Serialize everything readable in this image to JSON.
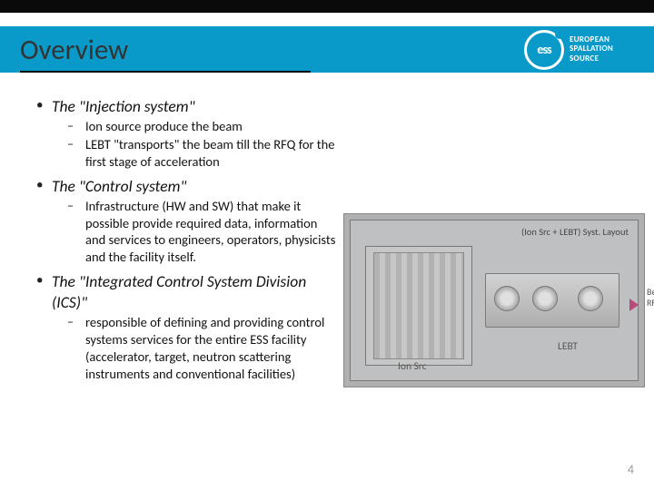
{
  "header": {
    "title": "Overview",
    "brand_lines": [
      "EUROPEAN",
      "SPALLATION",
      "SOURCE"
    ],
    "logo_text": "ess",
    "bar_color": "#0a9ac9",
    "top_stripe_color": "#0a0a0a"
  },
  "bullets": [
    {
      "level": 1,
      "italic": true,
      "text": "The \"Injection system\""
    },
    {
      "level": 2,
      "text": "Ion source produce the beam"
    },
    {
      "level": 2,
      "text": "LEBT \"transports\" the beam till the RFQ for the first stage of acceleration"
    },
    {
      "level": 1,
      "italic": true,
      "text": "The \"Control system\""
    },
    {
      "level": 2,
      "text": "Infrastructure (HW and SW) that make it possible provide required data, information and services to engineers, operators, physicists and the facility itself."
    },
    {
      "level": 1,
      "italic": true,
      "text": "The \"Integrated Control System Division (ICS)\""
    },
    {
      "level": 2,
      "text": "responsible of defining and providing control systems services for the entire ESS facility (accelerator, target, neutron scattering instruments and conventional facilities)"
    }
  ],
  "figure": {
    "title": "(Ion Src + LEBT) Syst. Layout",
    "label_ionsrc": "Ion Src",
    "label_lebt": "LEBT",
    "side_label": "Beam to RFQ",
    "background_color": "#b0b0b0",
    "border_color": "#888888",
    "arrow_color": "#b84a7a"
  },
  "page_number": "4"
}
